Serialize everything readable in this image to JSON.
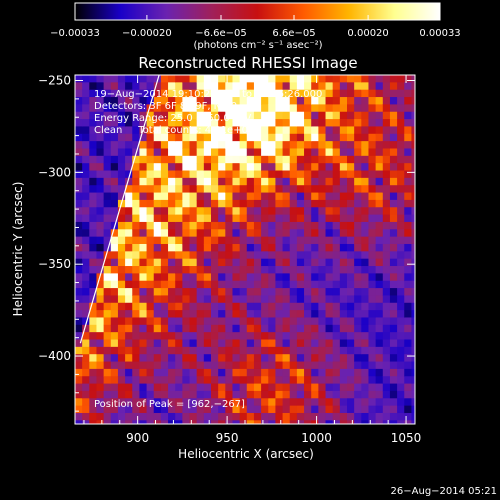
{
  "chart_data": {
    "type": "heatmap",
    "title": "Reconstructed RHESSI Image",
    "xlabel": "Heliocentric X (arcsec)",
    "ylabel": "Heliocentric Y (arcsec)",
    "xlim": [
      865,
      1055
    ],
    "ylim": [
      -437,
      -247
    ],
    "x_ticks": [
      900,
      950,
      1000,
      1050
    ],
    "x_tick_labels": [
      "900",
      "950",
      "1000",
      "1050"
    ],
    "y_ticks": [
      -250,
      -300,
      -350,
      -400
    ],
    "y_tick_labels": [
      "−250",
      "−300",
      "−350",
      "−400"
    ],
    "colorbar": {
      "range": [
        -0.00033,
        0.00033
      ],
      "ticks": [
        -0.00033,
        -0.0002,
        -6.6e-05,
        6.6e-05,
        0.0002,
        0.00033
      ],
      "tick_labels": [
        "−0.00033",
        "−0.00020",
        "−6.6e−05",
        "6.6e−05",
        "0.00020",
        "0.00033"
      ],
      "unit_label": "(photons cm⁻² s⁻¹ asec⁻²)",
      "colors": [
        "#000000",
        "#1a00c8",
        "#6a22b0",
        "#a0205a",
        "#c81010",
        "#ff5a00",
        "#ffb400",
        "#ffff90",
        "#ffffff"
      ]
    },
    "annotations": [
      "19−Aug−2014 19:10:26.000 to 19:16:26.000",
      "Detectors: 3F 6F 8F 9F, Nb 0",
      "Energy Range: 25.0 − 50.0 keV",
      "Clean     Total counts: 4.01e+03",
      "Position of Peak = [962,−267]"
    ],
    "limb_line": [
      [
        868,
        -393
      ],
      [
        912,
        -247
      ]
    ],
    "peak": [
      962,
      -267
    ],
    "grid": false,
    "pixel_size_arcsec": 4
  },
  "footer": {
    "timestamp": "26−Aug−2014 05:21"
  }
}
